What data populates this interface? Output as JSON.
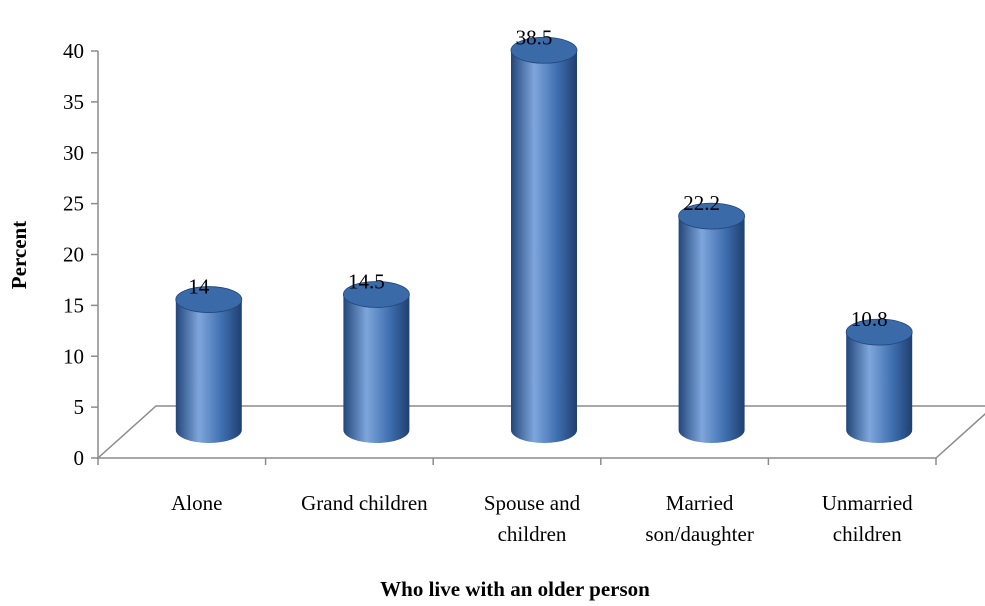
{
  "chart_data": {
    "type": "bar",
    "style": "3d-cylinder",
    "categories": [
      [
        "Alone"
      ],
      [
        "Grand children"
      ],
      [
        "Spouse and",
        "children"
      ],
      [
        "Married",
        "son/daughter"
      ],
      [
        "Unmarried",
        "children"
      ]
    ],
    "values": [
      14,
      14.5,
      38.5,
      22.2,
      10.8
    ],
    "data_labels": [
      "14",
      "14.5",
      "38.5",
      "22.2",
      "10.8"
    ],
    "xlabel": "Who live with an older person",
    "ylabel": "Percent",
    "ylim": [
      0,
      40
    ],
    "yticks": [
      "0",
      "5",
      "10",
      "15",
      "20",
      "25",
      "30",
      "35",
      "40"
    ],
    "grid": false,
    "legend": "none",
    "colors": {
      "bar_body": "#3f6fb0",
      "bar_highlight": "#7ea6dc",
      "bar_shadow": "#22467a",
      "bar_top": "#3a6aa8",
      "axis": "#8c8c8c"
    }
  }
}
